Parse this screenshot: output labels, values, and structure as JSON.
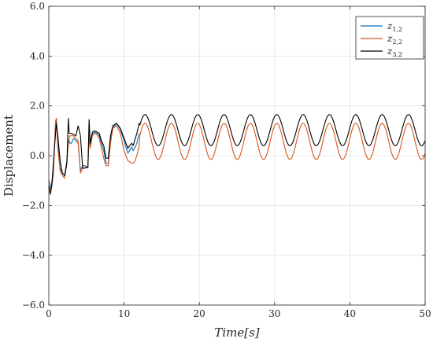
{
  "chart_data": {
    "type": "line",
    "xlabel": "Time[s]",
    "ylabel": "Displacement",
    "xlim": [
      0,
      50
    ],
    "ylim": [
      -6,
      6
    ],
    "xticks": [
      0,
      10,
      20,
      30,
      40,
      50
    ],
    "yticks": [
      -6,
      -4,
      -2,
      0,
      2,
      4,
      6
    ],
    "xtick_labels": [
      "0",
      "10",
      "20",
      "30",
      "40",
      "50"
    ],
    "ytick_labels": [
      "−6.0",
      "−4.0",
      "−2.0",
      "0.0",
      "2.0",
      "4.0",
      "6.0"
    ],
    "grid": true,
    "legend_position": "top-right",
    "series": [
      {
        "name": "z1,2",
        "label_main": "z",
        "label_sub": "1,2",
        "color": "#0072BD",
        "x": [
          0,
          0.3,
          0.6,
          0.9,
          1.0,
          1.2,
          1.5,
          1.8,
          2.1,
          2.4,
          2.6,
          2.7,
          2.8,
          3.0,
          3.3,
          3.6,
          3.9,
          4.2,
          4.5,
          4.8,
          5.2,
          5.35,
          5.5,
          5.8,
          6.1,
          6.4,
          6.7,
          7.0,
          7.3,
          7.6,
          7.9,
          8.2,
          8.5,
          9.0,
          9.5,
          10.0,
          10.5,
          11.0,
          11.2,
          11.4,
          11.7,
          12.0
        ],
        "y": [
          -1.0,
          -1.3,
          -0.6,
          1.3,
          1.45,
          0.5,
          -0.5,
          -0.7,
          -0.8,
          -0.2,
          0.5,
          0.6,
          0.5,
          0.5,
          0.7,
          0.6,
          0.5,
          -0.6,
          -0.4,
          -0.4,
          -0.5,
          0.9,
          0.4,
          0.9,
          0.95,
          0.9,
          0.8,
          0.5,
          0.2,
          -0.3,
          -0.3,
          0.6,
          1.1,
          1.3,
          1.05,
          0.6,
          0.1,
          0.35,
          0.2,
          0.3,
          0.5,
          0.9
        ]
      },
      {
        "name": "z2,2",
        "label_main": "z",
        "label_sub": "2,2",
        "color": "#D95319",
        "x": [
          0,
          0.3,
          0.6,
          0.9,
          1.0,
          1.2,
          1.5,
          1.8,
          2.1,
          2.4,
          2.6,
          2.7,
          2.8,
          3.0,
          3.3,
          3.6,
          3.9,
          4.2,
          4.5,
          4.8,
          5.2,
          5.35,
          5.5,
          5.8,
          6.1,
          6.4,
          6.7,
          7.0,
          7.3,
          7.6,
          7.9,
          8.2,
          8.5,
          9.0,
          9.5,
          10.0,
          10.5,
          11.0,
          11.2,
          11.4,
          11.7,
          12.0
        ],
        "y": [
          -1.2,
          -1.4,
          -0.8,
          1.4,
          1.5,
          0.3,
          -0.6,
          -0.8,
          -0.9,
          -0.3,
          0.6,
          0.7,
          0.8,
          0.8,
          0.8,
          0.7,
          0.6,
          -0.7,
          -0.5,
          -0.5,
          -0.4,
          0.8,
          0.3,
          0.8,
          0.9,
          0.85,
          0.7,
          0.3,
          -0.1,
          -0.4,
          -0.4,
          0.5,
          1.1,
          1.2,
          0.9,
          0.2,
          -0.2,
          -0.3,
          -0.3,
          -0.25,
          0.0,
          0.4
        ],
        "periodic_after": {
          "start": 12,
          "end": 50,
          "period": 3.5,
          "min": -0.15,
          "max": 1.3
        }
      },
      {
        "name": "z3,2",
        "label_main": "z",
        "label_sub": "3,2",
        "color": "#000000",
        "x": [
          0,
          0.2,
          0.4,
          0.7,
          1.0,
          1.2,
          1.5,
          1.8,
          2.1,
          2.4,
          2.6,
          2.7,
          2.8,
          3.0,
          3.3,
          3.6,
          3.9,
          4.2,
          4.5,
          4.8,
          5.2,
          5.35,
          5.5,
          5.8,
          6.1,
          6.4,
          6.7,
          7.0,
          7.3,
          7.6,
          7.9,
          8.2,
          8.5,
          9.0,
          9.5,
          10.0,
          10.5,
          11.0,
          11.2,
          11.4,
          11.7,
          12.0
        ],
        "y": [
          -1.2,
          -1.55,
          -1.2,
          0.1,
          1.3,
          0.8,
          -0.2,
          -0.7,
          -0.8,
          -0.3,
          1.5,
          0.9,
          0.9,
          0.9,
          0.85,
          0.8,
          1.2,
          0.8,
          -0.5,
          -0.5,
          -0.45,
          1.45,
          0.5,
          0.95,
          1.0,
          0.95,
          0.9,
          0.6,
          0.4,
          -0.1,
          -0.1,
          0.8,
          1.2,
          1.3,
          1.1,
          0.7,
          0.3,
          0.5,
          0.4,
          0.6,
          0.9,
          1.3
        ],
        "periodic_after": {
          "start": 12,
          "end": 50,
          "period": 3.5,
          "min": 0.4,
          "max": 1.65
        }
      }
    ]
  }
}
